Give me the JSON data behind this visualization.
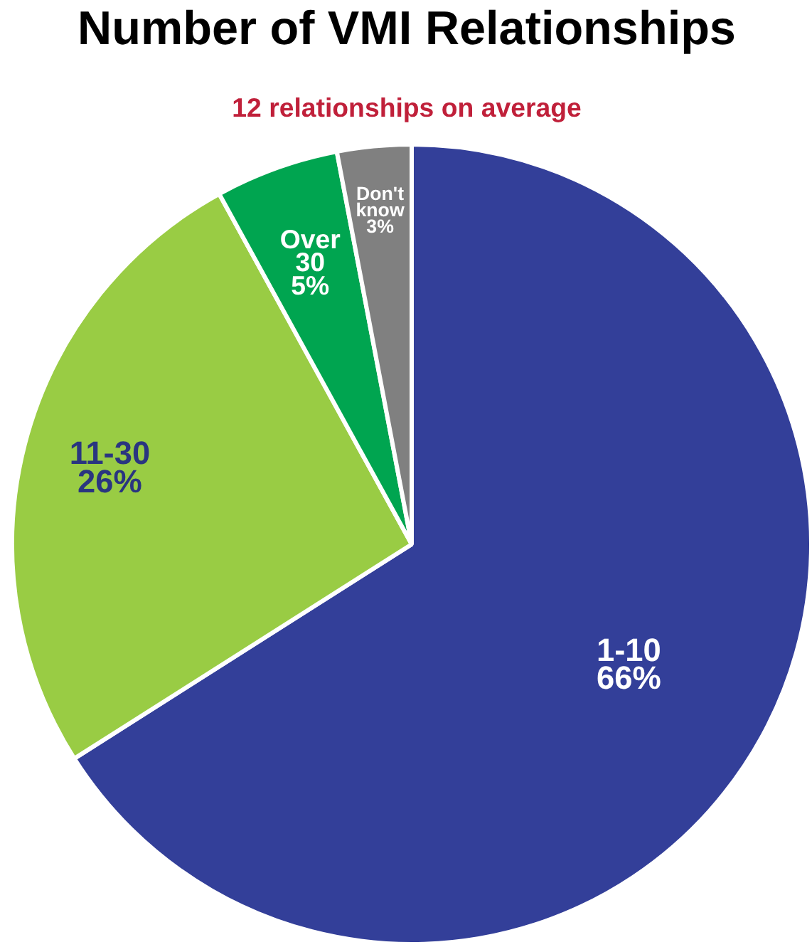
{
  "chart_data": {
    "type": "pie",
    "title": "Number of VMI Relationships",
    "subtitle": "12 relationships on average",
    "categories": [
      "1-10",
      "11-30",
      "Over 30",
      "Don't know"
    ],
    "values": [
      66,
      26,
      5,
      3
    ],
    "colors": [
      "#333f99",
      "#99cc44",
      "#00a550",
      "#808080"
    ],
    "value_labels": [
      "66%",
      "26%",
      "5%",
      "3%"
    ]
  }
}
